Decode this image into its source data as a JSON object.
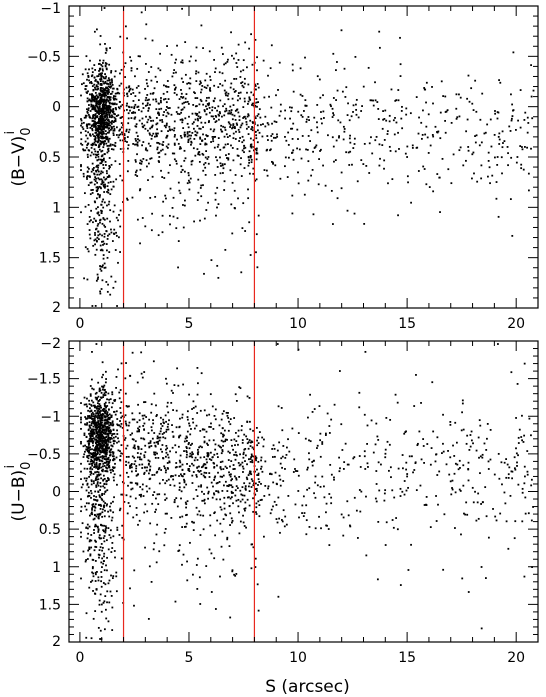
{
  "chart_data": [
    {
      "type": "scatter",
      "id": "top",
      "ylabel": "(B−V)",
      "ylabel_sup": "i",
      "ylabel_sub": "0",
      "xlim": [
        -0.5,
        21
      ],
      "ylim": [
        2,
        -1
      ],
      "y_inverted": true,
      "x_ticks": [
        0,
        5,
        10,
        15,
        20
      ],
      "y_ticks": [
        -1,
        -0.5,
        0,
        0.5,
        1,
        1.5,
        2
      ],
      "y_tick_labels": [
        "−1",
        "−0.5",
        "0",
        "0.5",
        "1",
        "1.5",
        "2"
      ],
      "show_x_tick_labels": true,
      "grid": false,
      "marker_color": "#000000",
      "vlines": {
        "x": [
          2,
          8
        ],
        "color": "#e8281e"
      },
      "point_count": 2400,
      "series": [
        {
          "x": [
            0.6,
            0.8,
            1.0,
            1.2,
            0.7,
            0.9,
            1.5,
            2.5,
            3.2,
            4.1,
            5.0,
            6.2,
            7.1,
            8.5,
            9.4,
            10.8,
            12.1,
            13.6,
            15.0,
            16.3,
            17.8,
            19.2,
            20.4
          ],
          "y": [
            0.0,
            0.1,
            -0.1,
            0.2,
            0.7,
            0.9,
            0.1,
            0.0,
            0.1,
            0.2,
            0.1,
            0.3,
            0.2,
            0.1,
            0.3,
            0.4,
            0.2,
            0.3,
            0.5,
            0.2,
            0.4,
            0.3,
            0.4
          ]
        }
      ]
    },
    {
      "type": "scatter",
      "id": "bottom",
      "xlabel": "S (arcsec)",
      "ylabel": "(U−B)",
      "ylabel_sup": "i",
      "ylabel_sub": "0",
      "xlim": [
        -0.5,
        21
      ],
      "ylim": [
        2,
        -2
      ],
      "y_inverted": true,
      "x_ticks": [
        0,
        5,
        10,
        15,
        20
      ],
      "y_ticks": [
        -2,
        -1.5,
        -1,
        -0.5,
        0,
        0.5,
        1,
        1.5,
        2
      ],
      "y_tick_labels": [
        "−2",
        "−1.5",
        "−1",
        "−0.5",
        "0",
        "0.5",
        "1",
        "1.5",
        "2"
      ],
      "show_x_tick_labels": true,
      "grid": false,
      "marker_color": "#000000",
      "vlines": {
        "x": [
          2,
          8
        ],
        "color": "#e8281e"
      },
      "point_count": 2400,
      "series": [
        {
          "x": [
            0.6,
            0.8,
            1.0,
            1.2,
            0.7,
            0.9,
            1.5,
            2.5,
            3.2,
            4.1,
            5.0,
            6.2,
            7.1,
            8.5,
            9.4,
            10.8,
            12.1,
            13.6,
            15.0,
            16.3,
            17.8,
            19.2,
            20.4
          ],
          "y": [
            -0.8,
            -0.6,
            -0.7,
            -0.9,
            0.0,
            0.3,
            -0.6,
            -0.6,
            -0.4,
            -0.4,
            -0.3,
            -0.2,
            -0.3,
            -0.4,
            -0.3,
            -0.2,
            -0.3,
            -0.1,
            -0.2,
            -0.4,
            -0.3,
            -0.5,
            -0.2
          ]
        }
      ]
    }
  ]
}
